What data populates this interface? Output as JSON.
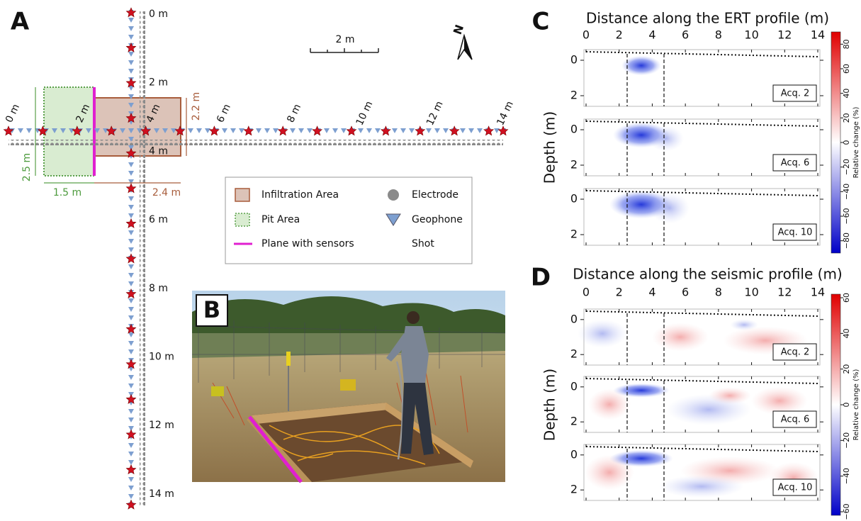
{
  "panel_a": {
    "label": "A",
    "vertical_distances": [
      "0 m",
      "2 m",
      "4 m",
      "6 m",
      "8 m",
      "10 m",
      "12 m",
      "14 m"
    ],
    "horizontal_distances": [
      "0 m",
      "2 m",
      "4 m",
      "6 m",
      "8 m",
      "10 m",
      "12 m",
      "14 m"
    ],
    "scale_bar": "2 m",
    "north": "N",
    "dimensions": {
      "infiltration_height": "2.2 m",
      "pit_height": "2.5 m",
      "pit_width": "1.5 m",
      "infiltration_width": "2.4 m"
    },
    "legend": [
      "Infiltration Area",
      "Pit Area",
      "Plane with sensors",
      "Electrode",
      "Geophone",
      "Shot"
    ]
  },
  "panel_b": {
    "label": "B"
  },
  "panel_c": {
    "label": "C",
    "title": "Distance along the ERT profile (m)",
    "xticks": [
      0,
      2,
      4,
      6,
      8,
      10,
      12,
      14
    ],
    "xlim": [
      0,
      14
    ],
    "yticks": [
      0,
      2
    ],
    "ylim": [
      -0.6,
      2.6
    ],
    "ylabel": "Depth (m)",
    "acquisitions": [
      "Acq. 2",
      "Acq. 6",
      "Acq. 10"
    ],
    "colorbar_lim": [
      -90,
      90
    ],
    "colorbar_ticks": [
      80,
      60,
      40,
      20,
      0,
      {
        "value": -20,
        "label": "−20"
      },
      {
        "value": -40,
        "label": "−40"
      },
      {
        "value": -60,
        "label": "−60"
      },
      {
        "value": -80,
        "label": "−80"
      }
    ],
    "colorbar_label": "Relative change (%)"
  },
  "panel_d": {
    "label": "D",
    "title": "Distance along the seismic profile (m)",
    "xticks": [
      0,
      2,
      4,
      6,
      8,
      10,
      12,
      14
    ],
    "xlim": [
      0,
      14
    ],
    "yticks": [
      0,
      2
    ],
    "ylim": [
      -0.6,
      2.6
    ],
    "ylabel": "Depth (m)",
    "acquisitions": [
      "Acq. 2",
      "Acq. 6",
      "Acq. 10"
    ],
    "colorbar_lim": [
      -62,
      62
    ],
    "colorbar_ticks": [
      60,
      40,
      20,
      0,
      {
        "value": -20,
        "label": "−20"
      },
      {
        "value": -40,
        "label": "−40"
      },
      {
        "value": -60,
        "label": "−60"
      }
    ],
    "colorbar_label": "Relative change (%)"
  }
}
